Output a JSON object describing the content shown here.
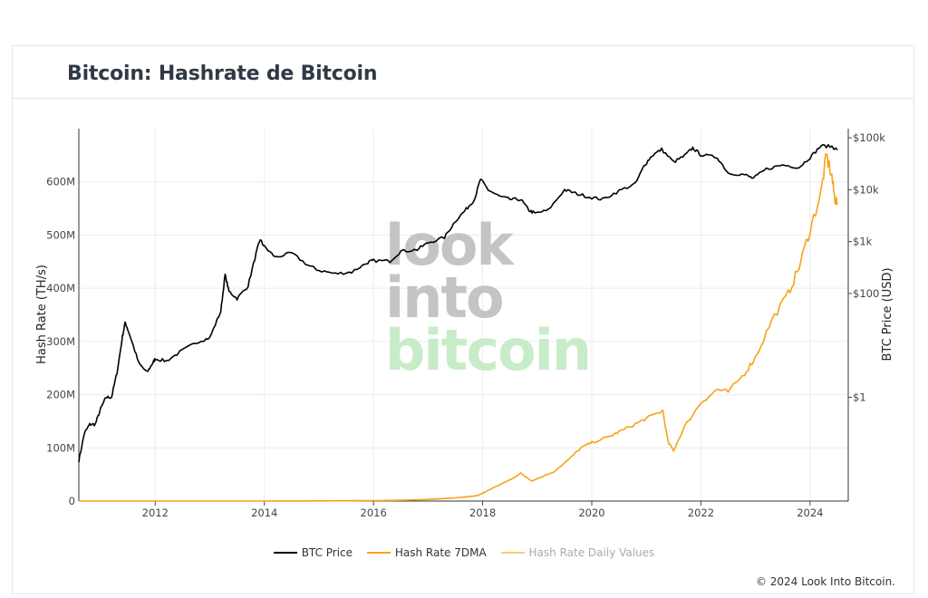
{
  "header": {
    "title": "Bitcoin: Hashrate de Bitcoin"
  },
  "watermark": {
    "line1": "look",
    "line2": "into",
    "line3": "bitcoin",
    "color_main": "#c4c4c4",
    "color_accent": "#c8ecc8"
  },
  "footer": {
    "copyright": "© 2024 Look Into Bitcoin."
  },
  "legend": [
    {
      "label": "BTC Price",
      "color": "#000000"
    },
    {
      "label": "Hash Rate 7DMA",
      "color": "#f7a21a"
    },
    {
      "label": "Hash Rate Daily Values",
      "color": "#f9c97a"
    }
  ],
  "chart_data": {
    "type": "line",
    "title": "Bitcoin: Hashrate de Bitcoin",
    "xlabel": "",
    "x_range": [
      2010.6,
      2024.7
    ],
    "x_ticks": [
      2012,
      2014,
      2016,
      2018,
      2020,
      2022,
      2024
    ],
    "x_tick_labels": [
      "2012",
      "2014",
      "2016",
      "2018",
      "2020",
      "2022",
      "2024"
    ],
    "y_left": {
      "label": "Hash Rate (TH/s)",
      "range": [
        0,
        700000000
      ],
      "ticks": [
        0,
        100000000,
        200000000,
        300000000,
        400000000,
        500000000,
        600000000
      ],
      "tick_labels": [
        "0",
        "100M",
        "200M",
        "300M",
        "400M",
        "500M",
        "600M"
      ]
    },
    "y_right": {
      "label": "BTC Price (USD)",
      "scale": "log",
      "range": [
        0.01,
        150000
      ],
      "ticks": [
        1,
        100,
        1000,
        10000,
        100000
      ],
      "tick_labels": [
        "$1",
        "$100",
        "$1k",
        "$10k",
        "$100k"
      ]
    },
    "grid": true,
    "legend_position": "bottom-center",
    "series": [
      {
        "name": "BTC Price",
        "axis": "right",
        "color": "#000000",
        "x": [
          2010.6,
          2010.7,
          2010.8,
          2010.9,
          2011.0,
          2011.1,
          2011.2,
          2011.3,
          2011.4,
          2011.45,
          2011.55,
          2011.7,
          2011.85,
          2011.95,
          2012.0,
          2012.2,
          2012.5,
          2012.8,
          2013.0,
          2013.2,
          2013.28,
          2013.35,
          2013.5,
          2013.7,
          2013.85,
          2013.92,
          2014.0,
          2014.2,
          2014.5,
          2014.8,
          2015.0,
          2015.3,
          2015.6,
          2015.9,
          2016.0,
          2016.3,
          2016.5,
          2016.8,
          2017.0,
          2017.3,
          2017.5,
          2017.7,
          2017.85,
          2017.96,
          2018.1,
          2018.3,
          2018.5,
          2018.7,
          2018.85,
          2018.96,
          2019.2,
          2019.5,
          2019.7,
          2019.96,
          2020.2,
          2020.5,
          2020.8,
          2020.96,
          2021.1,
          2021.28,
          2021.5,
          2021.7,
          2021.85,
          2022.0,
          2022.3,
          2022.5,
          2022.8,
          2022.96,
          2023.2,
          2023.5,
          2023.8,
          2024.0,
          2024.2,
          2024.4,
          2024.5
        ],
        "values": [
          0.06,
          0.2,
          0.3,
          0.3,
          0.6,
          1.0,
          1.0,
          3.0,
          15.0,
          28.0,
          14.0,
          4.5,
          3.0,
          4.5,
          5.5,
          5.0,
          8.0,
          12.0,
          14.0,
          45.0,
          230.0,
          110.0,
          80.0,
          140.0,
          600.0,
          1100.0,
          800.0,
          500.0,
          600.0,
          350.0,
          280.0,
          240.0,
          260.0,
          400.0,
          430.0,
          420.0,
          650.0,
          700.0,
          950.0,
          1200.0,
          2500.0,
          4200.0,
          6500.0,
          16000.0,
          10000.0,
          7500.0,
          6500.0,
          6500.0,
          4000.0,
          3500.0,
          4000.0,
          10000.0,
          8500.0,
          7200.0,
          6500.0,
          9500.0,
          13000.0,
          29000.0,
          45000.0,
          60000.0,
          34000.0,
          45000.0,
          64000.0,
          47000.0,
          42000.0,
          21000.0,
          19500.0,
          16500.0,
          25000.0,
          30000.0,
          27000.0,
          42000.0,
          70000.0,
          68000.0,
          58000.0
        ]
      },
      {
        "name": "Hash Rate 7DMA",
        "axis": "left",
        "color": "#f7a21a",
        "x": [
          2010.6,
          2012.0,
          2014.0,
          2015.0,
          2016.0,
          2016.5,
          2017.0,
          2017.5,
          2017.9,
          2018.2,
          2018.5,
          2018.7,
          2018.9,
          2019.0,
          2019.3,
          2019.6,
          2019.8,
          2020.0,
          2020.3,
          2020.5,
          2020.8,
          2021.0,
          2021.3,
          2021.4,
          2021.5,
          2021.7,
          2022.0,
          2022.3,
          2022.5,
          2022.8,
          2023.0,
          2023.3,
          2023.6,
          2023.8,
          2024.0,
          2024.2,
          2024.3,
          2024.4,
          2024.45,
          2024.5
        ],
        "values": [
          0,
          0,
          50000,
          300000,
          800000,
          1500000,
          3000000,
          6000000,
          10000000,
          25000000,
          40000000,
          52000000,
          38000000,
          42000000,
          55000000,
          80000000,
          100000000,
          110000000,
          120000000,
          130000000,
          145000000,
          155000000,
          170000000,
          110000000,
          95000000,
          140000000,
          185000000,
          210000000,
          205000000,
          240000000,
          270000000,
          340000000,
          390000000,
          440000000,
          510000000,
          580000000,
          650000000,
          610000000,
          570000000,
          560000000
        ]
      }
    ]
  }
}
